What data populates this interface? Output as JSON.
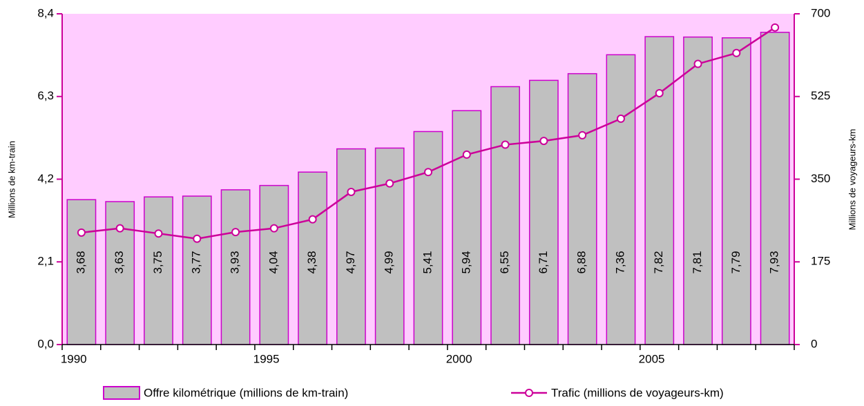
{
  "chart_data": {
    "type": "bar+line",
    "categories": [
      "1990",
      null,
      null,
      null,
      null,
      "1995",
      null,
      null,
      null,
      null,
      "2000",
      null,
      null,
      null,
      null,
      "2005",
      null,
      null,
      null
    ],
    "series": [
      {
        "name": "Offre kilométrique (millions de km-train)",
        "type": "bar",
        "color": "#c0c0c0",
        "edge_color": "#cc00cc",
        "values": [
          3.68,
          3.63,
          3.75,
          3.77,
          3.93,
          4.04,
          4.38,
          4.97,
          4.99,
          5.41,
          5.94,
          6.55,
          6.71,
          6.88,
          7.36,
          7.82,
          7.81,
          7.79,
          7.93
        ],
        "value_labels": [
          "3,68",
          "3,63",
          "3,75",
          "3,77",
          "3,93",
          "4,04",
          "4,38",
          "4,97",
          "4,99",
          "5,41",
          "5,94",
          "6,55",
          "6,71",
          "6,88",
          "7,36",
          "7,82",
          "7,81",
          "7,79",
          "7,93"
        ]
      },
      {
        "name": "Trafic (millions de voyageurs-km)",
        "type": "line",
        "color": "#cc0099",
        "axis": "y2",
        "values": [
          237,
          246,
          235,
          224,
          238,
          246,
          265,
          323,
          341,
          365,
          402,
          423,
          431,
          443,
          478,
          532,
          594,
          617,
          671
        ]
      }
    ],
    "ylabel": "Millions de km-train",
    "y2label": "Millions de voyageurs-km",
    "ylim": [
      0,
      8.4
    ],
    "yticks": [
      {
        "value": 0,
        "label": "0,0"
      },
      {
        "value": 2.1,
        "label": "2,1"
      },
      {
        "value": 4.2,
        "label": "4,2"
      },
      {
        "value": 6.3,
        "label": "6,3"
      },
      {
        "value": 8.4,
        "label": "8,4"
      }
    ],
    "y2lim": [
      0,
      700
    ],
    "y2ticks": [
      0,
      175,
      350,
      525,
      700
    ],
    "background": "#ffccff",
    "axis_color": "#cc0099"
  }
}
